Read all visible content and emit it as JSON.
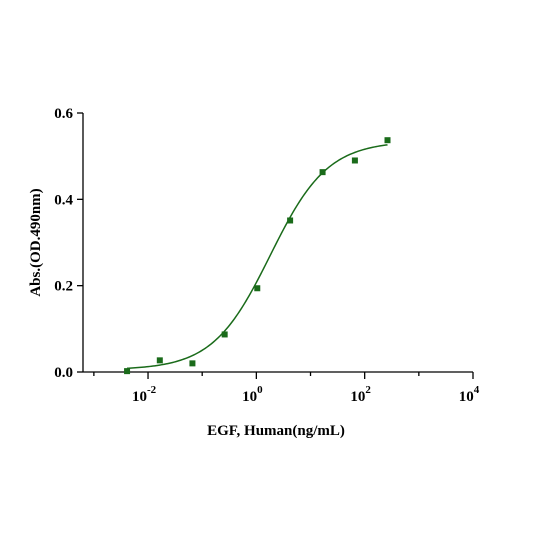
{
  "chart_data": {
    "type": "scatter",
    "xlabel": "EGF, Human(ng/mL)",
    "ylabel": "Abs.(OD.490nm)",
    "xscale": "log10",
    "xlim": [
      0.00063,
      10000
    ],
    "ylim": [
      0,
      0.6
    ],
    "x_ticks": [
      {
        "value": 0.01,
        "base": "10",
        "exp": "-2"
      },
      {
        "value": 1,
        "base": "10",
        "exp": "0"
      },
      {
        "value": 100,
        "base": "10",
        "exp": "2"
      },
      {
        "value": 10000,
        "base": "10",
        "exp": "4"
      }
    ],
    "y_ticks": [
      {
        "value": 0,
        "label": "0.0"
      },
      {
        "value": 0.2,
        "label": "0.2"
      },
      {
        "value": 0.4,
        "label": "0.4"
      },
      {
        "value": 0.6,
        "label": "0.6"
      }
    ],
    "grid": false,
    "legend": "none",
    "colors": {
      "series": "#1a6b1a",
      "axis": "#000000"
    },
    "series": [
      {
        "marker": "square",
        "points": [
          {
            "x": 0.0041,
            "y": 0.002
          },
          {
            "x": 0.0165,
            "y": 0.027
          },
          {
            "x": 0.066,
            "y": 0.02
          },
          {
            "x": 0.26,
            "y": 0.087
          },
          {
            "x": 1.04,
            "y": 0.194
          },
          {
            "x": 4.2,
            "y": 0.351
          },
          {
            "x": 16.7,
            "y": 0.463
          },
          {
            "x": 66,
            "y": 0.49
          },
          {
            "x": 264,
            "y": 0.537
          }
        ],
        "fit": {
          "model": "4PL",
          "bottom": 0.005,
          "top": 0.535,
          "ec50": 1.8,
          "hill": 0.82,
          "x_range": [
            0.0041,
            264
          ]
        }
      }
    ]
  }
}
